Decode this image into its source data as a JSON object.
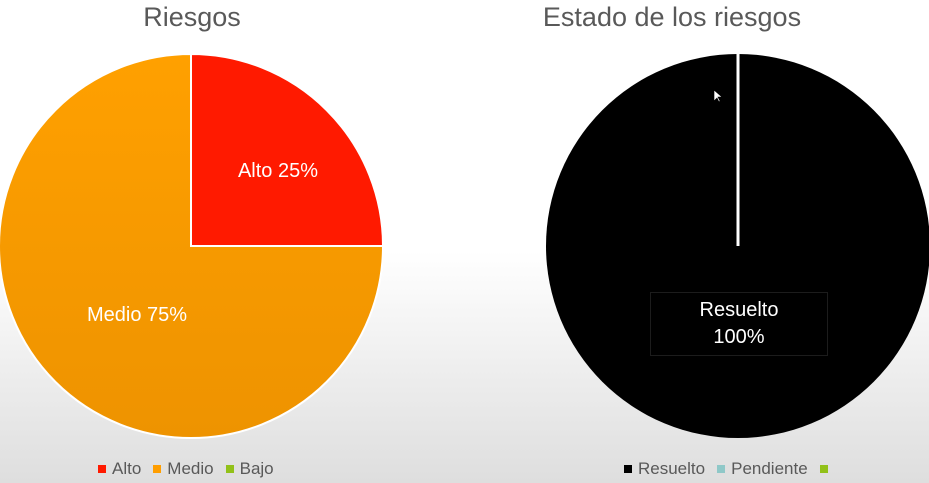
{
  "chart_data": [
    {
      "type": "pie",
      "title": "Riesgos",
      "categories": [
        "Alto",
        "Medio",
        "Bajo"
      ],
      "values": [
        25,
        75,
        0
      ],
      "colors": [
        "#ff1a00",
        "#ff9e00",
        "#92c119"
      ],
      "labels": [
        "Alto 25%",
        "Medio 75%",
        ""
      ],
      "legend_position": "bottom"
    },
    {
      "type": "pie",
      "title": "Estado de los riesgos",
      "categories": [
        "Resuelto",
        "Pendiente",
        ""
      ],
      "values": [
        100,
        0,
        0
      ],
      "colors": [
        "#000000",
        "#8fc8c8",
        "#92c119"
      ],
      "labels": [
        "Resuelto",
        "100%"
      ],
      "legend_position": "bottom"
    }
  ]
}
